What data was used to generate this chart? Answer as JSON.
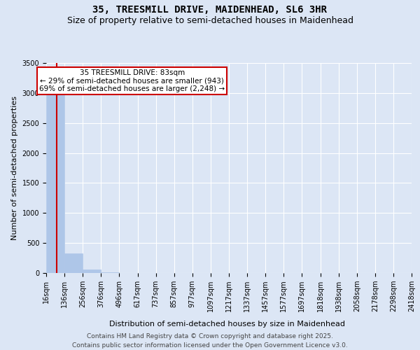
{
  "title_line1": "35, TREESMILL DRIVE, MAIDENHEAD, SL6 3HR",
  "title_line2": "Size of property relative to semi-detached houses in Maidenhead",
  "xlabel": "Distribution of semi-detached houses by size in Maidenhead",
  "ylabel": "Number of semi-detached properties",
  "annotation_title": "35 TREESMILL DRIVE: 83sqm",
  "annotation_line2": "← 29% of semi-detached houses are smaller (943)",
  "annotation_line3": "69% of semi-detached houses are larger (2,248) →",
  "footer_line1": "Contains HM Land Registry data © Crown copyright and database right 2025.",
  "footer_line2": "Contains public sector information licensed under the Open Government Licence v3.0.",
  "bar_edges": [
    16,
    136,
    256,
    376,
    496,
    617,
    737,
    857,
    977,
    1097,
    1217,
    1337,
    1457,
    1577,
    1697,
    1818,
    1938,
    2058,
    2178,
    2298,
    2418
  ],
  "bar_values": [
    3248,
    330,
    55,
    12,
    4,
    2,
    1,
    0,
    0,
    0,
    0,
    0,
    0,
    0,
    0,
    0,
    0,
    0,
    0,
    0
  ],
  "property_size": 83,
  "bar_color": "#aec6e8",
  "bar_edge_color": "#aec6e8",
  "vline_color": "#cc0000",
  "vline_x": 83,
  "annotation_box_color": "#cc0000",
  "background_color": "#dce6f5",
  "plot_bg_color": "#dce6f5",
  "ylim": [
    0,
    3500
  ],
  "yticks": [
    0,
    500,
    1000,
    1500,
    2000,
    2500,
    3000,
    3500
  ],
  "grid_color": "#ffffff",
  "title_fontsize": 10,
  "subtitle_fontsize": 9,
  "axis_label_fontsize": 8,
  "tick_fontsize": 7,
  "annotation_fontsize": 7.5,
  "footer_fontsize": 6.5
}
